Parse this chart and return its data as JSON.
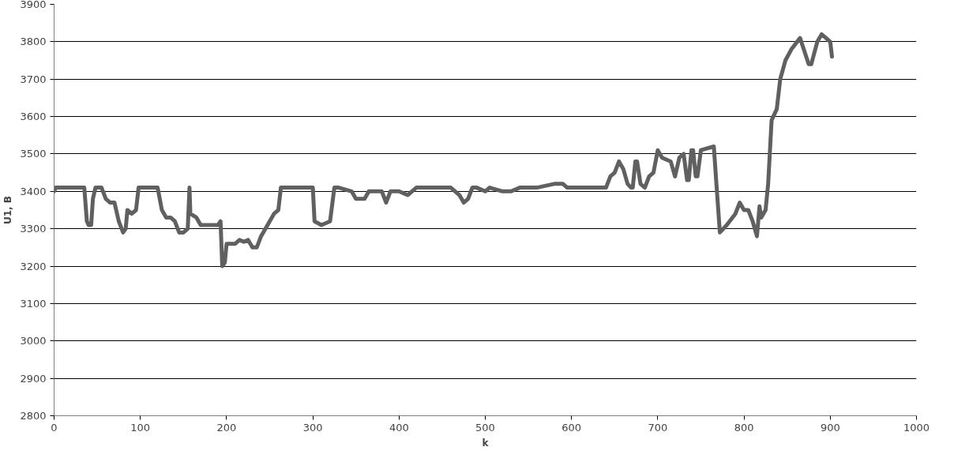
{
  "chart_data": {
    "type": "line",
    "xlabel": "k",
    "ylabel": "U1, B",
    "xlim": [
      0,
      1000
    ],
    "ylim": [
      2800,
      3900
    ],
    "xticks": [
      0,
      100,
      200,
      300,
      400,
      500,
      600,
      700,
      800,
      900,
      1000
    ],
    "yticks": [
      2800,
      2900,
      3000,
      3100,
      3200,
      3300,
      3400,
      3500,
      3600,
      3700,
      3800,
      3900
    ],
    "grid": "y",
    "marker": "none",
    "line_style": "solid",
    "series": [
      {
        "color": "#606060",
        "x": [
          0,
          2,
          35,
          38,
          40,
          43,
          45,
          48,
          55,
          60,
          65,
          70,
          75,
          80,
          83,
          85,
          90,
          95,
          98,
          120,
          125,
          130,
          135,
          140,
          145,
          150,
          155,
          157,
          158,
          165,
          170,
          190,
          193,
          195,
          198,
          200,
          210,
          215,
          220,
          225,
          230,
          235,
          240,
          250,
          255,
          260,
          263,
          300,
          302,
          310,
          320,
          325,
          330,
          345,
          350,
          360,
          365,
          380,
          385,
          390,
          400,
          410,
          420,
          460,
          470,
          475,
          480,
          485,
          490,
          500,
          505,
          520,
          530,
          540,
          560,
          580,
          590,
          595,
          640,
          645,
          650,
          655,
          660,
          665,
          669,
          671,
          674,
          676,
          680,
          685,
          690,
          695,
          700,
          705,
          715,
          720,
          725,
          730,
          734,
          736,
          739,
          741,
          744,
          746,
          750,
          765,
          768,
          772,
          780,
          790,
          795,
          800,
          805,
          810,
          815,
          818,
          820,
          825,
          828,
          832,
          838,
          842,
          848,
          855,
          865,
          875,
          878,
          885,
          890,
          900,
          902
        ],
        "values": [
          3400,
          3410,
          3410,
          3320,
          3310,
          3310,
          3380,
          3410,
          3410,
          3380,
          3370,
          3370,
          3320,
          3290,
          3300,
          3350,
          3340,
          3350,
          3410,
          3410,
          3350,
          3330,
          3330,
          3320,
          3290,
          3290,
          3300,
          3410,
          3340,
          3330,
          3310,
          3310,
          3320,
          3200,
          3210,
          3260,
          3260,
          3270,
          3265,
          3270,
          3250,
          3250,
          3280,
          3320,
          3340,
          3350,
          3410,
          3410,
          3320,
          3310,
          3320,
          3410,
          3410,
          3400,
          3380,
          3380,
          3400,
          3400,
          3370,
          3400,
          3400,
          3390,
          3410,
          3410,
          3390,
          3370,
          3380,
          3410,
          3410,
          3400,
          3410,
          3400,
          3400,
          3410,
          3410,
          3420,
          3420,
          3410,
          3410,
          3440,
          3450,
          3480,
          3460,
          3420,
          3410,
          3410,
          3480,
          3480,
          3420,
          3410,
          3440,
          3450,
          3510,
          3490,
          3480,
          3440,
          3490,
          3500,
          3430,
          3430,
          3510,
          3510,
          3440,
          3440,
          3510,
          3520,
          3420,
          3290,
          3310,
          3340,
          3370,
          3350,
          3350,
          3320,
          3280,
          3360,
          3330,
          3350,
          3420,
          3590,
          3620,
          3700,
          3750,
          3780,
          3810,
          3740,
          3740,
          3800,
          3820,
          3800,
          3760
        ]
      }
    ]
  }
}
